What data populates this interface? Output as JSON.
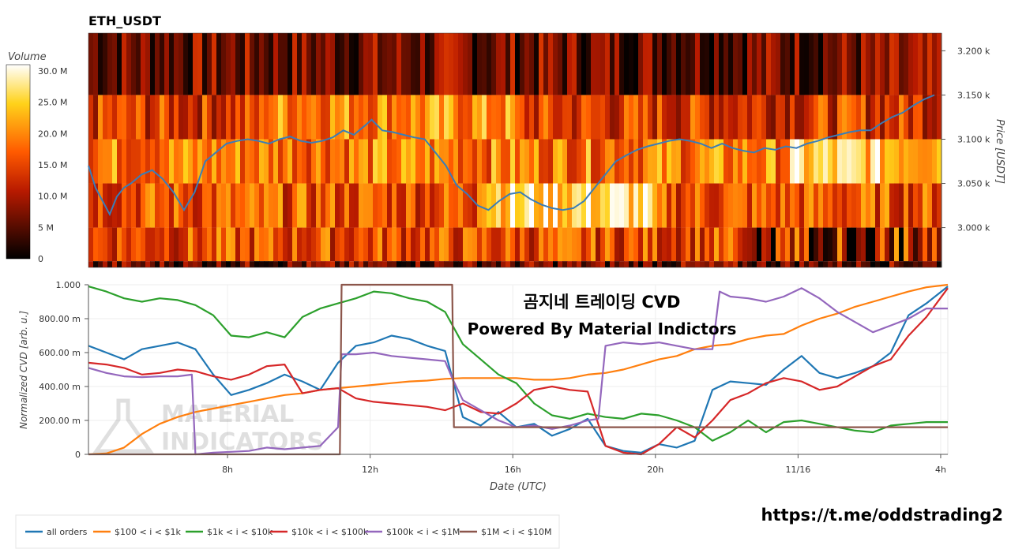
{
  "chart_data": [
    {
      "type": "heatmap",
      "title": "ETH_USDT",
      "colorbar": {
        "title": "Volume",
        "ticks": [
          "30.0 M",
          "25.0 M",
          "20.0 M",
          "15.0 M",
          "10.0 M",
          "5 M",
          "0"
        ],
        "range": [
          0,
          31
        ]
      },
      "y_axis": {
        "label": "Price [USDT]",
        "ticks": [
          "3.200 k",
          "3.150 k",
          "3.100 k",
          "3.050 k",
          "3.000 k"
        ],
        "tick_values": [
          3200,
          3150,
          3100,
          3050,
          3000
        ],
        "range": [
          2955,
          3220
        ]
      },
      "x_range_hours": [
        4.1,
        28.2
      ],
      "price_bands": [
        3200,
        3150,
        3100,
        3050,
        3000,
        2962
      ],
      "price_line": {
        "name": "price",
        "x": [
          4.1,
          4.3,
          4.5,
          4.7,
          4.9,
          5.1,
          5.3,
          5.6,
          5.9,
          6.2,
          6.5,
          6.8,
          7.1,
          7.4,
          7.7,
          8.0,
          8.3,
          8.6,
          8.9,
          9.2,
          9.5,
          9.8,
          10.1,
          10.4,
          10.7,
          11.0,
          11.3,
          11.6,
          11.9,
          12.1,
          12.4,
          12.7,
          13.0,
          13.3,
          13.6,
          13.9,
          14.2,
          14.5,
          14.8,
          15.1,
          15.4,
          15.7,
          16.0,
          16.3,
          16.6,
          16.9,
          17.2,
          17.5,
          17.8,
          18.1,
          18.4,
          18.7,
          19.0,
          19.3,
          19.6,
          19.9,
          20.2,
          20.5,
          20.8,
          21.1,
          21.4,
          21.7,
          22.0,
          22.3,
          22.6,
          22.9,
          23.2,
          23.5,
          23.8,
          24.1,
          24.4,
          24.7,
          25.0,
          25.3,
          25.6,
          25.9,
          26.2,
          26.5,
          26.8,
          27.1,
          27.4,
          27.7,
          28.0
        ],
        "y": [
          3070,
          3045,
          3030,
          3015,
          3035,
          3045,
          3050,
          3060,
          3065,
          3055,
          3040,
          3020,
          3040,
          3075,
          3085,
          3095,
          3098,
          3100,
          3098,
          3095,
          3100,
          3103,
          3098,
          3096,
          3098,
          3102,
          3110,
          3105,
          3115,
          3122,
          3110,
          3108,
          3105,
          3102,
          3100,
          3085,
          3070,
          3048,
          3038,
          3025,
          3020,
          3030,
          3038,
          3040,
          3032,
          3026,
          3022,
          3020,
          3022,
          3030,
          3045,
          3060,
          3075,
          3082,
          3088,
          3092,
          3095,
          3098,
          3100,
          3098,
          3095,
          3090,
          3095,
          3090,
          3087,
          3085,
          3090,
          3088,
          3092,
          3090,
          3095,
          3098,
          3102,
          3105,
          3108,
          3110,
          3110,
          3118,
          3125,
          3130,
          3138,
          3145,
          3150
        ]
      }
    },
    {
      "type": "line",
      "watermark": [
        "MATERIAL",
        "INDICATORS"
      ],
      "annotation": [
        "곰지네 트레이딩 CVD",
        "Powered By Material Indictors"
      ],
      "xlabel": "Date (UTC)",
      "ylabel": "Normalized CVD [arb. u.]",
      "x_ticks": [
        "8h",
        "12h",
        "16h",
        "20h",
        "11/16",
        "4h"
      ],
      "x_tick_values": [
        8,
        12,
        16,
        20,
        24,
        28
      ],
      "xlim": [
        4.1,
        28.2
      ],
      "y_ticks": [
        "1.000",
        "800.00 m",
        "600.00 m",
        "400.00 m",
        "200.00 m",
        "0"
      ],
      "y_tick_values": [
        1000,
        800,
        600,
        400,
        200,
        0
      ],
      "ylim": [
        0,
        1000
      ],
      "legend_position": "bottom-left",
      "series": [
        {
          "name": "all orders",
          "color": "#1f77b4",
          "x": [
            4.1,
            4.6,
            5.1,
            5.6,
            6.1,
            6.6,
            7.1,
            7.6,
            8.1,
            8.6,
            9.1,
            9.6,
            10.1,
            10.6,
            11.1,
            11.6,
            12.1,
            12.6,
            13.1,
            13.6,
            14.1,
            14.6,
            15.1,
            15.6,
            16.1,
            16.6,
            17.1,
            17.6,
            18.1,
            18.6,
            19.1,
            19.6,
            20.1,
            20.6,
            21.1,
            21.6,
            22.1,
            22.6,
            23.1,
            23.6,
            24.1,
            24.6,
            25.1,
            25.6,
            26.1,
            26.6,
            27.1,
            27.6,
            28.2
          ],
          "y": [
            640,
            600,
            560,
            620,
            640,
            660,
            620,
            470,
            350,
            380,
            420,
            470,
            430,
            380,
            540,
            640,
            660,
            700,
            680,
            640,
            610,
            220,
            170,
            250,
            160,
            180,
            110,
            150,
            210,
            50,
            20,
            10,
            60,
            40,
            80,
            380,
            430,
            420,
            410,
            500,
            580,
            480,
            450,
            480,
            520,
            600,
            820,
            890,
            990
          ]
        },
        {
          "name": "$100 < i < $1k",
          "color": "#ff7f0e",
          "x": [
            4.1,
            4.6,
            5.1,
            5.6,
            6.1,
            6.6,
            7.1,
            7.6,
            8.1,
            8.6,
            9.1,
            9.6,
            10.1,
            10.6,
            11.1,
            11.6,
            12.1,
            12.6,
            13.1,
            13.6,
            14.1,
            14.6,
            15.1,
            15.6,
            16.1,
            16.6,
            17.1,
            17.6,
            18.1,
            18.6,
            19.1,
            19.6,
            20.1,
            20.6,
            21.1,
            21.6,
            22.1,
            22.6,
            23.1,
            23.6,
            24.1,
            24.6,
            25.1,
            25.6,
            26.1,
            26.6,
            27.1,
            27.6,
            28.2
          ],
          "y": [
            0,
            5,
            40,
            120,
            180,
            220,
            250,
            270,
            290,
            310,
            330,
            350,
            360,
            380,
            390,
            400,
            410,
            420,
            430,
            435,
            445,
            450,
            450,
            450,
            450,
            440,
            440,
            450,
            470,
            480,
            500,
            530,
            560,
            580,
            620,
            640,
            650,
            680,
            700,
            710,
            760,
            800,
            830,
            870,
            900,
            930,
            960,
            985,
            1000
          ]
        },
        {
          "name": "$1k < i < $10k",
          "color": "#2ca02c",
          "x": [
            4.1,
            4.6,
            5.1,
            5.6,
            6.1,
            6.6,
            7.1,
            7.6,
            8.1,
            8.6,
            9.1,
            9.6,
            10.1,
            10.6,
            11.1,
            11.6,
            12.1,
            12.6,
            13.1,
            13.6,
            14.1,
            14.6,
            15.1,
            15.6,
            16.1,
            16.6,
            17.1,
            17.6,
            18.1,
            18.6,
            19.1,
            19.6,
            20.1,
            20.6,
            21.1,
            21.6,
            22.1,
            22.6,
            23.1,
            23.6,
            24.1,
            24.6,
            25.1,
            25.6,
            26.1,
            26.6,
            27.1,
            27.6,
            28.2
          ],
          "y": [
            990,
            960,
            920,
            900,
            920,
            910,
            880,
            820,
            700,
            690,
            720,
            690,
            810,
            860,
            890,
            920,
            960,
            950,
            920,
            900,
            840,
            650,
            560,
            470,
            420,
            300,
            230,
            210,
            240,
            220,
            210,
            240,
            230,
            200,
            160,
            80,
            130,
            200,
            130,
            190,
            200,
            180,
            160,
            140,
            130,
            170,
            180,
            190,
            190
          ]
        },
        {
          "name": "$10k < i < $100k",
          "color": "#d62728",
          "x": [
            4.1,
            4.6,
            5.1,
            5.6,
            6.1,
            6.6,
            7.1,
            7.6,
            8.1,
            8.6,
            9.1,
            9.6,
            10.1,
            10.6,
            11.1,
            11.6,
            12.1,
            12.6,
            13.1,
            13.6,
            14.1,
            14.6,
            15.1,
            15.6,
            16.1,
            16.6,
            17.1,
            17.6,
            18.1,
            18.6,
            19.1,
            19.6,
            20.1,
            20.6,
            21.1,
            21.6,
            22.1,
            22.6,
            23.1,
            23.6,
            24.1,
            24.6,
            25.1,
            25.6,
            26.1,
            26.6,
            27.1,
            27.6,
            28.2
          ],
          "y": [
            540,
            530,
            510,
            470,
            480,
            500,
            490,
            460,
            440,
            470,
            520,
            530,
            360,
            380,
            390,
            330,
            310,
            300,
            290,
            280,
            260,
            300,
            250,
            240,
            300,
            380,
            400,
            380,
            370,
            50,
            10,
            0,
            60,
            160,
            100,
            200,
            320,
            360,
            420,
            450,
            430,
            380,
            400,
            460,
            520,
            560,
            700,
            810,
            980
          ]
        },
        {
          "name": "$100k < i < $1M",
          "color": "#9467bd",
          "x": [
            4.1,
            4.6,
            5.1,
            5.6,
            6.1,
            6.6,
            7.0,
            7.1,
            7.6,
            8.1,
            8.6,
            9.1,
            9.6,
            10.1,
            10.6,
            11.1,
            11.2,
            11.6,
            12.1,
            12.6,
            13.1,
            13.6,
            14.1,
            14.3,
            14.6,
            15.1,
            15.6,
            16.1,
            16.6,
            17.1,
            17.6,
            18.1,
            18.4,
            18.6,
            19.1,
            19.6,
            20.1,
            20.6,
            21.1,
            21.6,
            21.8,
            22.1,
            22.6,
            23.1,
            23.6,
            24.1,
            24.6,
            25.1,
            25.6,
            26.1,
            26.6,
            27.1,
            27.6,
            28.2
          ],
          "y": [
            510,
            480,
            460,
            455,
            460,
            460,
            470,
            0,
            10,
            15,
            20,
            40,
            30,
            40,
            50,
            160,
            590,
            590,
            600,
            580,
            570,
            560,
            550,
            450,
            320,
            260,
            200,
            160,
            170,
            150,
            170,
            200,
            210,
            640,
            660,
            650,
            660,
            640,
            620,
            620,
            960,
            930,
            920,
            900,
            930,
            980,
            920,
            840,
            780,
            720,
            760,
            800,
            860,
            860
          ]
        },
        {
          "name": "$1M < i < $10M",
          "color": "#8c564b",
          "x": [
            4.1,
            11.15,
            11.2,
            14.3,
            14.35,
            28.2
          ],
          "y": [
            0,
            0,
            1000,
            1000,
            160,
            160
          ]
        }
      ]
    }
  ],
  "source_url": "https://t.me/oddstrading2"
}
